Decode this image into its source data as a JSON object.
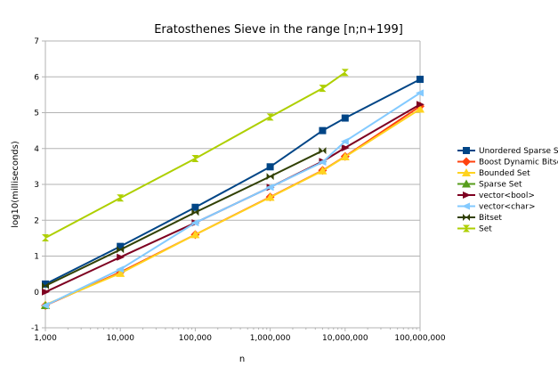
{
  "chart_data": {
    "type": "line",
    "title": "Eratosthenes Sieve in the range [n;n+199]",
    "xlabel": "n",
    "ylabel": "log10(milliseconds)",
    "xscale": "log",
    "xlim": [
      1000,
      100000000
    ],
    "ylim": [
      -1,
      7
    ],
    "x_ticks": [
      1000,
      10000,
      100000,
      1000000,
      10000000,
      100000000
    ],
    "x_tick_labels": [
      "1,000",
      "10,000",
      "100,000",
      "1,000,000",
      "10,000,000",
      "100,000,000"
    ],
    "y_ticks": [
      -1,
      0,
      1,
      2,
      3,
      4,
      5,
      6,
      7
    ],
    "y_tick_labels": [
      "-1",
      "0",
      "1",
      "2",
      "3",
      "4",
      "5",
      "6",
      "7"
    ],
    "grid": "horizontal",
    "legend_position": "right",
    "series": [
      {
        "name": "Unordered Sparse Set",
        "color": "#004586",
        "marker": "square",
        "x": [
          1000,
          10000,
          100000,
          1000000,
          5000000,
          10000000,
          100000000
        ],
        "y": [
          0.22,
          1.27,
          2.36,
          3.49,
          4.5,
          4.85,
          5.93
        ]
      },
      {
        "name": "Boost Dynamic Bitset",
        "color": "#ff420e",
        "marker": "diamond",
        "x": [
          1000,
          10000,
          100000,
          1000000,
          5000000,
          10000000,
          100000000
        ],
        "y": [
          -0.38,
          0.55,
          1.6,
          2.65,
          3.39,
          3.78,
          5.18
        ]
      },
      {
        "name": "Bounded Set",
        "color": "#ffd320",
        "marker": "triangle-up",
        "x": [
          1000,
          10000,
          100000,
          1000000,
          5000000,
          10000000,
          100000000
        ],
        "y": [
          -0.36,
          0.52,
          1.6,
          2.64,
          3.38,
          3.77,
          5.1
        ]
      },
      {
        "name": "Sparse Set",
        "color": "#579d1c",
        "marker": "triangle-up",
        "x": [
          1000
        ],
        "y": [
          -0.38
        ]
      },
      {
        "name": "vector<bool>",
        "color": "#7e0021",
        "marker": "triangle-right",
        "x": [
          1000,
          10000,
          100000,
          1000000,
          5000000,
          10000000,
          100000000
        ],
        "y": [
          0.0,
          0.97,
          1.93,
          2.92,
          3.64,
          4.02,
          5.23
        ]
      },
      {
        "name": "vector<char>",
        "color": "#83caff",
        "marker": "triangle-left",
        "x": [
          1000,
          10000,
          100000,
          1000000,
          5000000,
          10000000,
          100000000
        ],
        "y": [
          -0.38,
          0.63,
          1.93,
          2.92,
          3.62,
          4.2,
          5.55
        ]
      },
      {
        "name": "Bitset",
        "color": "#314004",
        "marker": "bowtie",
        "x": [
          1000,
          10000,
          100000,
          1000000,
          5000000
        ],
        "y": [
          0.17,
          1.18,
          2.22,
          3.22,
          3.94
        ]
      },
      {
        "name": "Set",
        "color": "#aecf00",
        "marker": "hourglass",
        "x": [
          1000,
          10000,
          100000,
          1000000,
          5000000,
          10000000
        ],
        "y": [
          1.51,
          2.62,
          3.72,
          4.88,
          5.68,
          6.12
        ]
      }
    ]
  }
}
